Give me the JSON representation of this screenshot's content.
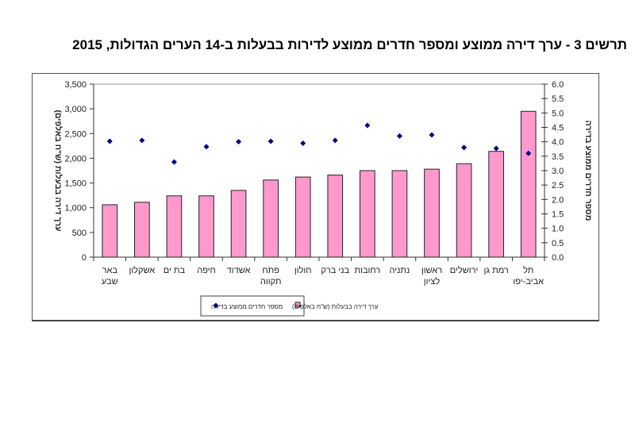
{
  "chart_data": {
    "type": "bar+scatter",
    "title": "תרשים 3 - ערך דירה ממוצע ומספר חדרים ממוצע לדירות בבעלות ב-14 הערים הגדולות, 2015",
    "categories": [
      "באר\nשבע",
      "אשקלון",
      "בת ים",
      "חיפה",
      "אשדוד",
      "פתח\nתקווה",
      "חולון",
      "בני ברק",
      "רחובות",
      "נתניה",
      "ראשון\nלציון",
      "ירושלים",
      "רמת גן",
      "תל\nאביב-יפו"
    ],
    "series": [
      {
        "name": "ערך דירה בבעלות (ש\"ח באלפים)",
        "type": "bar",
        "axis": "left",
        "color": "#ff99cc",
        "values": [
          1060,
          1110,
          1240,
          1240,
          1350,
          1560,
          1620,
          1660,
          1750,
          1750,
          1780,
          1890,
          2140,
          2950
        ]
      },
      {
        "name": "מספר חדרים ממוצע בדירה",
        "type": "scatter",
        "axis": "right",
        "color": "#000080",
        "values": [
          4.02,
          4.05,
          3.3,
          3.83,
          4.0,
          4.02,
          3.95,
          4.05,
          4.57,
          4.2,
          4.24,
          3.8,
          3.77,
          3.6
        ]
      }
    ],
    "ylabel": "ערך דירה בבעלות (ש\"ח באלפים)",
    "ylabel_right": "מספר חדרים ממוצע בדירה",
    "ylim": [
      0,
      3500
    ],
    "yticks": [
      "0",
      "500",
      "1,000",
      "1,500",
      "2,000",
      "2,500",
      "3,000",
      "3,500"
    ],
    "ylim_right": [
      0,
      6
    ],
    "yticks_right": [
      "0.0",
      "0.5",
      "1.0",
      "1.5",
      "2.0",
      "2.5",
      "3.0",
      "3.5",
      "4.0",
      "4.5",
      "5.0",
      "5.5",
      "6.0"
    ],
    "grid": false,
    "legend": "bottom"
  }
}
